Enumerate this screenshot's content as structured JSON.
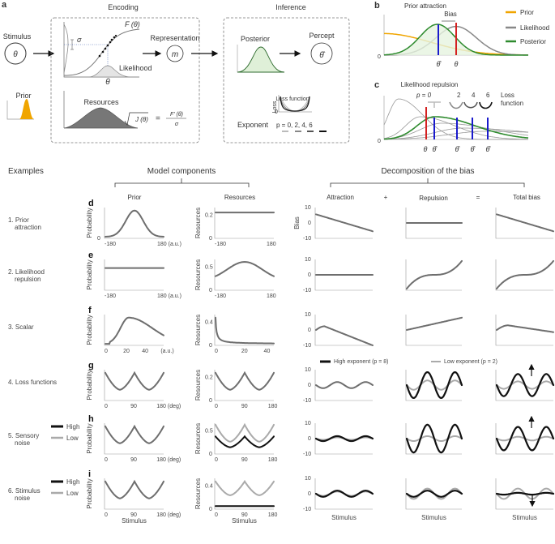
{
  "colors": {
    "prior": "#f0a500",
    "likelihood": "#888888",
    "posterior": "#2e8b2e",
    "red": "#d42020",
    "blue": "#1a1acc",
    "curve": "#6e6e6e",
    "high": "#111111",
    "low": "#aaaaaa"
  },
  "panel_a": {
    "label": "a",
    "encoding_title": "Encoding",
    "inference_title": "Inference",
    "stimulus": "Stimulus",
    "theta": "θ",
    "prior": "Prior",
    "F_label": "F (θ)",
    "sigma": "σ",
    "likelihood": "Likelihood",
    "theta_axis": "θ",
    "resources": "Resources",
    "formula_lhs": "J (θ)",
    "formula_eq": "=",
    "formula_num": "F' (θ)",
    "formula_den": "σ",
    "representation": "Representation",
    "m": "m",
    "posterior": "Posterior",
    "percept": "Percept",
    "theta_hat": "θ̂",
    "loss_function": "Loss function",
    "loss_axis": "Loss",
    "loss_zero": "0",
    "exponent": "Exponent",
    "exponent_values": "p = 0,  2,  4,  6"
  },
  "panel_b": {
    "label": "b",
    "title": "Prior attraction",
    "bias": "Bias",
    "zero": "0",
    "theta_hat": "θ̂",
    "theta": "θ",
    "legend": [
      {
        "name": "Prior"
      },
      {
        "name": "Likelihood"
      },
      {
        "name": "Posterior"
      }
    ]
  },
  "panel_c": {
    "label": "c",
    "title": "Likelihood repulsion",
    "zero": "0",
    "p_label": "p = 0",
    "exponents": [
      "2",
      "4",
      "6"
    ],
    "loss_label_1": "Loss",
    "loss_label_2": "function",
    "theta": "θ",
    "theta_hat": "θ̂"
  },
  "headers": {
    "examples": "Examples",
    "model_components": "Model components",
    "decomposition": "Decomposition of the bias",
    "prior": "Prior",
    "resources": "Resources",
    "attraction": "Attraction",
    "plus": "+",
    "repulsion": "Repulsion",
    "equals": "=",
    "total_bias": "Total bias"
  },
  "rows": [
    {
      "label": "d",
      "example_1": "1. Prior",
      "example_2": "attraction",
      "prior_ylabel": "Probability",
      "prior_yticks": [
        "0"
      ],
      "prior_xticks": [
        "-180",
        "180 (a.u.)"
      ],
      "res_ylabel": "Resources",
      "res_yticks": [
        "0.2",
        "0"
      ],
      "res_xticks": [
        "-180",
        "180"
      ],
      "bias_ylabel": "Bias",
      "bias_yticks": [
        "10",
        "0",
        "-10"
      ]
    },
    {
      "label": "e",
      "example_1": "2. Likelihood",
      "example_2": "repulsion",
      "prior_ylabel": "Probability",
      "prior_yticks": [],
      "prior_xticks": [
        "-180",
        "180 (a.u.)"
      ],
      "res_ylabel": "Resources",
      "res_yticks": [
        "0.5",
        "0"
      ],
      "res_xticks": [
        "-180",
        "180"
      ],
      "bias_yticks": [
        "10",
        "0",
        "-10"
      ]
    },
    {
      "label": "f",
      "example_1": "3. Scalar",
      "example_2": "",
      "prior_ylabel": "Probability",
      "prior_yticks": [],
      "prior_xticks": [
        "0",
        "20",
        "40",
        "(a.u.)"
      ],
      "res_ylabel": "Resources",
      "res_yticks": [
        "0.4",
        "0"
      ],
      "res_xticks": [
        "0",
        "20",
        "40"
      ],
      "bias_yticks": [
        "10",
        "0",
        "-10"
      ]
    },
    {
      "label": "g",
      "example_1": "4. Loss functions",
      "example_2": "",
      "prior_ylabel": "Probability",
      "prior_yticks": [],
      "prior_xticks": [
        "0",
        "90",
        "180 (deg)"
      ],
      "res_ylabel": "Resources",
      "res_yticks": [
        "0.2",
        "0"
      ],
      "res_xticks": [
        "0",
        "90",
        "180"
      ],
      "bias_yticks": [
        "10",
        "0",
        "-10"
      ],
      "legend_high": "High exponent (p = 8)",
      "legend_low": "Low exponent (p = 2)"
    },
    {
      "label": "h",
      "example_1": "5. Sensory",
      "example_2": "noise",
      "legend_high": "High",
      "legend_low": "Low",
      "prior_ylabel": "Probability",
      "prior_yticks": [],
      "prior_xticks": [
        "0",
        "90",
        "180 (deg)"
      ],
      "res_ylabel": "Resources",
      "res_yticks": [
        "0.5",
        "0"
      ],
      "res_xticks": [
        "0",
        "90",
        "180"
      ],
      "bias_yticks": [
        "10",
        "0",
        "-10"
      ]
    },
    {
      "label": "i",
      "example_1": "6. Stimulus",
      "example_2": "noise",
      "legend_high": "High",
      "legend_low": "Low",
      "prior_ylabel": "Probability",
      "prior_yticks": [],
      "prior_xticks": [
        "0",
        "90",
        "180 (deg)"
      ],
      "res_ylabel": "Resources",
      "res_yticks": [
        "0.4",
        "0"
      ],
      "res_xticks": [
        "0",
        "90",
        "180"
      ],
      "bias_yticks": [
        "10",
        "0",
        "-10"
      ],
      "xlabel": "Stimulus"
    }
  ]
}
